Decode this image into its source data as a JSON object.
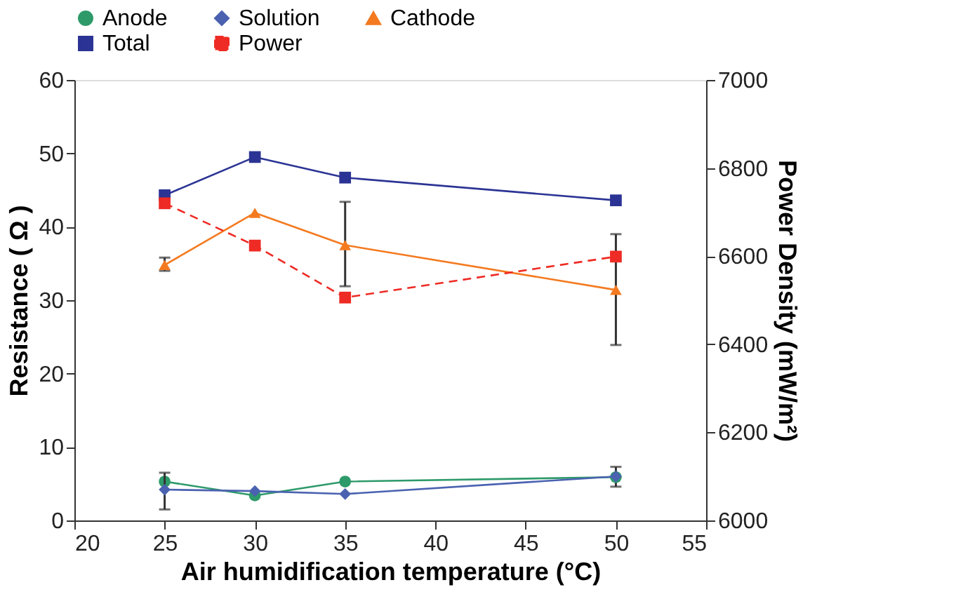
{
  "chart_data": {
    "type": "line",
    "xlabel": "Air humidification temperature (°C)",
    "ylabel": "Resistance ( Ω )",
    "y2label": "Power Density (mW/m²)",
    "x": [
      25,
      30,
      35,
      50
    ],
    "series": [
      {
        "name": "Anode",
        "color": "#2e9a6a",
        "marker": "circle",
        "values": [
          5.3,
          3.4,
          5.3,
          5.9
        ],
        "errors": [
          null,
          null,
          null,
          [
            4.6,
            7.3
          ]
        ]
      },
      {
        "name": "Solution",
        "color": "#4a62b0",
        "marker": "diamond",
        "values": [
          4.2,
          4.0,
          3.6,
          6.0
        ],
        "errors": [
          [
            1.5,
            6.5
          ],
          null,
          null,
          null
        ]
      },
      {
        "name": "Cathode",
        "color": "#f47a20",
        "marker": "triangle",
        "values": [
          34.8,
          41.9,
          37.5,
          31.4
        ],
        "errors": [
          [
            34.0,
            35.8
          ],
          null,
          [
            31.9,
            43.4
          ],
          [
            23.9,
            39.0
          ]
        ]
      },
      {
        "name": "Total",
        "color": "#2b3494",
        "marker": "square",
        "values": [
          44.3,
          49.5,
          46.7,
          43.6
        ]
      },
      {
        "name": "Power",
        "color": "#ee2b24",
        "marker": "square",
        "line_style": "dashed",
        "axis": "y2",
        "values": [
          6720,
          6624,
          6506,
          6599
        ]
      }
    ],
    "xlim": [
      20,
      55
    ],
    "xticks": [
      20,
      25,
      30,
      35,
      40,
      45,
      50,
      55
    ],
    "ylim": [
      0,
      60
    ],
    "yticks": [
      0,
      10,
      20,
      30,
      40,
      50,
      60
    ],
    "y2lim": [
      6000,
      7000
    ],
    "y2ticks": [
      6000,
      6200,
      6400,
      6600,
      6800,
      7000
    ],
    "grid": false,
    "legend": "top"
  }
}
